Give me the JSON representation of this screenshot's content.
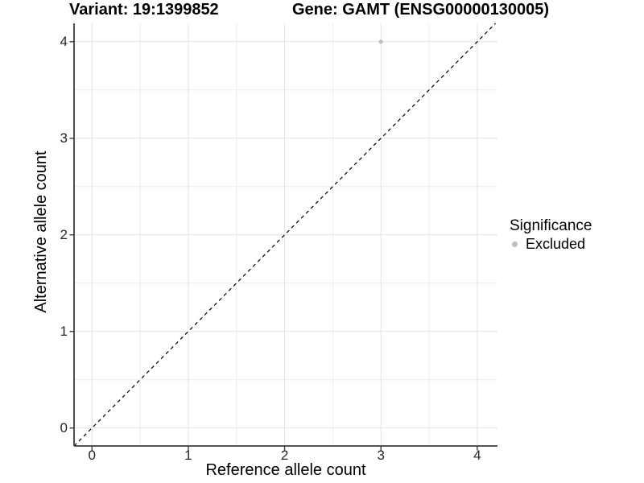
{
  "chart_data": {
    "type": "scatter",
    "title_variant": "Variant: 19:1399852",
    "title_gene": "Gene: GAMT (ENSG00000130005)",
    "xlabel": "Reference allele count",
    "ylabel": "Alternative allele count",
    "xlim": [
      -0.186,
      4.21
    ],
    "ylim": [
      -0.186,
      4.19
    ],
    "x_ticks": [
      0,
      1,
      2,
      3,
      4
    ],
    "y_ticks": [
      0,
      1,
      2,
      3,
      4
    ],
    "x_tick_labels": [
      "0",
      "1",
      "2",
      "3",
      "4"
    ],
    "y_tick_labels": [
      "0",
      "1",
      "2",
      "3",
      "4"
    ],
    "x_minor": [
      0.5,
      1.5,
      2.5,
      3.5
    ],
    "y_minor": [
      0.5,
      1.5,
      2.5,
      3.5
    ],
    "grid": "major+minor",
    "identity_line": {
      "slope": 1,
      "intercept": 0,
      "style": "dashed",
      "color": "#000000"
    },
    "series": [
      {
        "name": "Excluded",
        "color": "#bebebe",
        "points": [
          {
            "x": 3,
            "y": 4
          }
        ]
      }
    ],
    "legend": {
      "title": "Significance",
      "position": "right",
      "entries": [
        {
          "label": "Excluded",
          "color": "#bebebe"
        }
      ]
    },
    "style": {
      "grid_major": "#e2e2e2",
      "grid_minor": "#ececec",
      "axis_line": "#3d3d3d",
      "tick_mark": "#3d3d3d",
      "point_radius": 2.6
    }
  }
}
